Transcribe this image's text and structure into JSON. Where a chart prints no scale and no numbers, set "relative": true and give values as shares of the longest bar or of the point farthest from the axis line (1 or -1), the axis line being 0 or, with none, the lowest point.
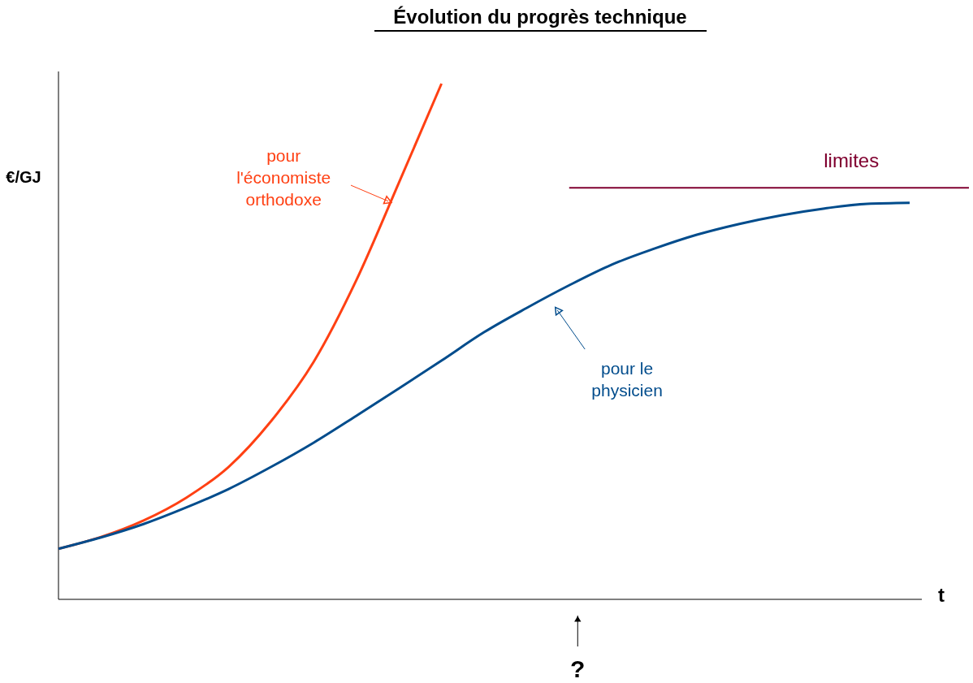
{
  "chart_data": {
    "type": "line",
    "relative": true,
    "title": "Évolution du progrès technique",
    "ylabel": "€/GJ",
    "xlabel": "t",
    "categories": [
      null,
      null,
      null,
      null,
      null,
      null,
      null,
      null,
      null,
      null,
      null,
      null,
      null,
      null,
      null,
      null,
      null,
      null,
      null,
      null,
      null
    ],
    "series": [
      {
        "name": "pour l'économiste orthodoxe",
        "color": "#ff4013",
        "values": [
          0.098,
          0.121,
          0.153,
          0.197,
          0.257,
          0.346,
          0.461,
          0.619,
          0.808,
          1.0,
          null,
          null,
          null,
          null,
          null,
          null,
          null,
          null,
          null,
          null,
          null
        ]
      },
      {
        "name": "pour le physicien",
        "color": "#004c8c",
        "values": [
          0.098,
          0.12,
          0.146,
          0.178,
          0.214,
          0.257,
          0.304,
          0.356,
          0.409,
          0.463,
          0.518,
          0.565,
          0.609,
          0.649,
          0.68,
          0.707,
          0.728,
          0.745,
          0.758,
          0.767,
          0.769
        ]
      }
    ],
    "ref_lines": [
      {
        "axis": "y",
        "value": 0.798,
        "label": "limites",
        "color": "#800030"
      }
    ],
    "annotations": [
      "?"
    ]
  }
}
